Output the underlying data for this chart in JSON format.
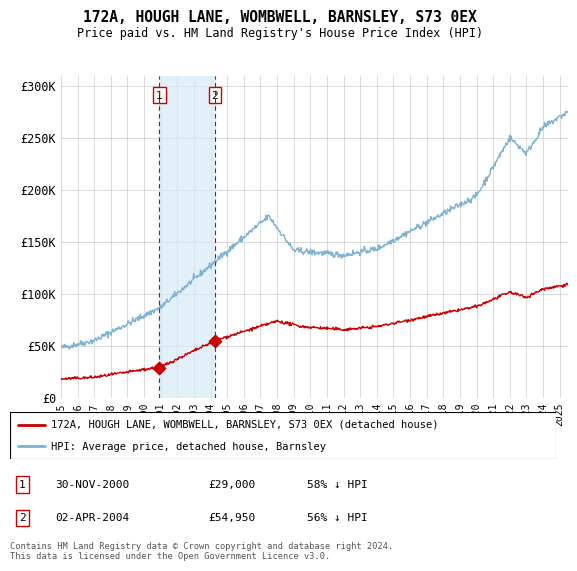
{
  "title": "172A, HOUGH LANE, WOMBWELL, BARNSLEY, S73 0EX",
  "subtitle": "Price paid vs. HM Land Registry's House Price Index (HPI)",
  "ylim": [
    0,
    310000
  ],
  "yticks": [
    0,
    50000,
    100000,
    150000,
    200000,
    250000,
    300000
  ],
  "ytick_labels": [
    "£0",
    "£50K",
    "£100K",
    "£150K",
    "£200K",
    "£250K",
    "£300K"
  ],
  "sale1_date": 2000.92,
  "sale1_price": 29000,
  "sale2_date": 2004.25,
  "sale2_price": 54950,
  "property_color": "#cc0000",
  "hpi_color": "#7fb3d3",
  "legend_property": "172A, HOUGH LANE, WOMBWELL, BARNSLEY, S73 0EX (detached house)",
  "legend_hpi": "HPI: Average price, detached house, Barnsley",
  "footnote": "Contains HM Land Registry data © Crown copyright and database right 2024.\nThis data is licensed under the Open Government Licence v3.0.",
  "xmin": 1995,
  "xmax": 2025.5,
  "highlight_start": 2000.92,
  "highlight_end": 2004.25
}
